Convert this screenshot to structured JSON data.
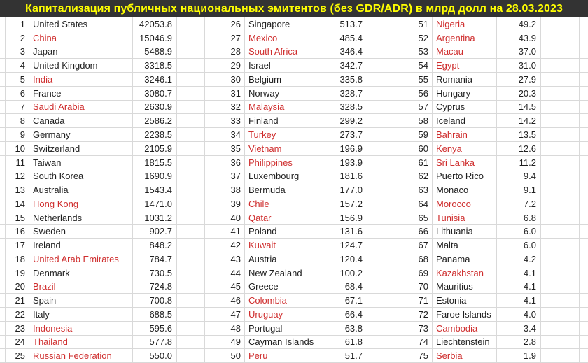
{
  "title": "Капитализация публичных национальных эмитентов (без GDR/ADR) в млрд долл на 28.03.2023",
  "colors": {
    "title_bg": "#333333",
    "title_text": "#ffff00",
    "text": "#1f1f1f",
    "red": "#cf2e2e",
    "gridline": "#d9d9d9"
  },
  "chart_data": {
    "type": "table",
    "title": "Капитализация публичных национальных эмитентов (без GDR/ADR) в млрд долл на 28.03.2023",
    "columns": [
      "rank",
      "country",
      "capitalization_bln_usd"
    ],
    "note_red_flag_meaning": "red=true means the country name is rendered in red",
    "groups": [
      {
        "rows": [
          [
            1,
            "United States",
            "42053.8",
            false
          ],
          [
            2,
            "China",
            "15046.9",
            true
          ],
          [
            3,
            "Japan",
            "5488.9",
            false
          ],
          [
            4,
            "United Kingdom",
            "3318.5",
            false
          ],
          [
            5,
            "India",
            "3246.1",
            true
          ],
          [
            6,
            "France",
            "3080.7",
            false
          ],
          [
            7,
            "Saudi Arabia",
            "2630.9",
            true
          ],
          [
            8,
            "Canada",
            "2586.2",
            false
          ],
          [
            9,
            "Germany",
            "2238.5",
            false
          ],
          [
            10,
            "Switzerland",
            "2105.9",
            false
          ],
          [
            11,
            "Taiwan",
            "1815.5",
            false
          ],
          [
            12,
            "South Korea",
            "1690.9",
            false
          ],
          [
            13,
            "Australia",
            "1543.4",
            false
          ],
          [
            14,
            "Hong Kong",
            "1471.0",
            true
          ],
          [
            15,
            "Netherlands",
            "1031.2",
            false
          ],
          [
            16,
            "Sweden",
            "902.7",
            false
          ],
          [
            17,
            "Ireland",
            "848.2",
            false
          ],
          [
            18,
            "United Arab Emirates",
            "784.7",
            true
          ],
          [
            19,
            "Denmark",
            "730.5",
            false
          ],
          [
            20,
            "Brazil",
            "724.8",
            true
          ],
          [
            21,
            "Spain",
            "700.8",
            false
          ],
          [
            22,
            "Italy",
            "688.5",
            false
          ],
          [
            23,
            "Indonesia",
            "595.6",
            true
          ],
          [
            24,
            "Thailand",
            "577.8",
            true
          ],
          [
            25,
            "Russian Federation",
            "550.0",
            true
          ]
        ]
      },
      {
        "rows": [
          [
            26,
            "Singapore",
            "513.7",
            false
          ],
          [
            27,
            "Mexico",
            "485.4",
            true
          ],
          [
            28,
            "South Africa",
            "346.4",
            true
          ],
          [
            29,
            "Israel",
            "342.7",
            false
          ],
          [
            30,
            "Belgium",
            "335.8",
            false
          ],
          [
            31,
            "Norway",
            "328.7",
            false
          ],
          [
            32,
            "Malaysia",
            "328.5",
            true
          ],
          [
            33,
            "Finland",
            "299.2",
            false
          ],
          [
            34,
            "Turkey",
            "273.7",
            true
          ],
          [
            35,
            "Vietnam",
            "196.9",
            true
          ],
          [
            36,
            "Philippines",
            "193.9",
            true
          ],
          [
            37,
            "Luxembourg",
            "181.6",
            false
          ],
          [
            38,
            "Bermuda",
            "177.0",
            false
          ],
          [
            39,
            "Chile",
            "157.2",
            true
          ],
          [
            40,
            "Qatar",
            "156.9",
            true
          ],
          [
            41,
            "Poland",
            "131.6",
            false
          ],
          [
            42,
            "Kuwait",
            "124.7",
            true
          ],
          [
            43,
            "Austria",
            "120.4",
            false
          ],
          [
            44,
            "New Zealand",
            "100.2",
            false
          ],
          [
            45,
            "Greece",
            "68.4",
            false
          ],
          [
            46,
            "Colombia",
            "67.1",
            true
          ],
          [
            47,
            "Uruguay",
            "66.4",
            true
          ],
          [
            48,
            "Portugal",
            "63.8",
            false
          ],
          [
            49,
            "Cayman Islands",
            "61.8",
            false
          ],
          [
            50,
            "Peru",
            "51.7",
            true
          ]
        ]
      },
      {
        "rows": [
          [
            51,
            "Nigeria",
            "49.2",
            true
          ],
          [
            52,
            "Argentina",
            "43.9",
            true
          ],
          [
            53,
            "Macau",
            "37.0",
            true
          ],
          [
            54,
            "Egypt",
            "31.0",
            true
          ],
          [
            55,
            "Romania",
            "27.9",
            false
          ],
          [
            56,
            "Hungary",
            "20.3",
            false
          ],
          [
            57,
            "Cyprus",
            "14.5",
            false
          ],
          [
            58,
            "Iceland",
            "14.2",
            false
          ],
          [
            59,
            "Bahrain",
            "13.5",
            true
          ],
          [
            60,
            "Kenya",
            "12.6",
            true
          ],
          [
            61,
            "Sri Lanka",
            "11.2",
            true
          ],
          [
            62,
            "Puerto Rico",
            "9.4",
            false
          ],
          [
            63,
            "Monaco",
            "9.1",
            false
          ],
          [
            64,
            "Morocco",
            "7.2",
            true
          ],
          [
            65,
            "Tunisia",
            "6.8",
            true
          ],
          [
            66,
            "Lithuania",
            "6.0",
            false
          ],
          [
            67,
            "Malta",
            "6.0",
            false
          ],
          [
            68,
            "Panama",
            "4.2",
            false
          ],
          [
            69,
            "Kazakhstan",
            "4.1",
            true
          ],
          [
            70,
            "Mauritius",
            "4.1",
            false
          ],
          [
            71,
            "Estonia",
            "4.1",
            false
          ],
          [
            72,
            "Faroe Islands",
            "4.0",
            false
          ],
          [
            73,
            "Cambodia",
            "3.4",
            true
          ],
          [
            74,
            "Liechtenstein",
            "2.8",
            false
          ],
          [
            75,
            "Serbia",
            "1.9",
            true
          ]
        ]
      }
    ]
  }
}
